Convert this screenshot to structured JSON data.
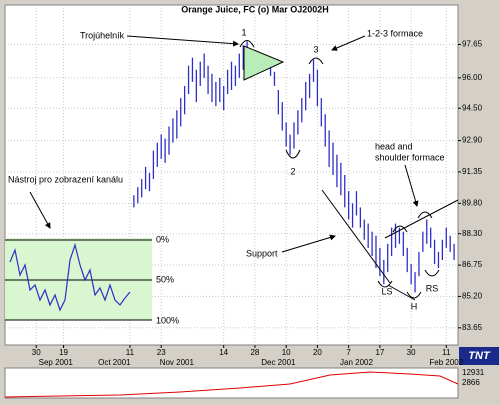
{
  "chart_data": {
    "type": "hlc",
    "title": "Orange Juice, FC (o) Mar OJ2002H",
    "color": "#2f2fc8",
    "grid": true,
    "xlim": [
      0,
      116
    ],
    "ylim": [
      82.8,
      99.6
    ],
    "yticks": [
      {
        "value": 97.65,
        "label": "97.65"
      },
      {
        "value": 96.0,
        "label": "96.00"
      },
      {
        "value": 94.5,
        "label": "94.50"
      },
      {
        "value": 92.9,
        "label": "92.90"
      },
      {
        "value": 91.35,
        "label": "91.35"
      },
      {
        "value": 89.8,
        "label": "89.80"
      },
      {
        "value": 88.3,
        "label": "88.30"
      },
      {
        "value": 86.75,
        "label": "86.75"
      },
      {
        "value": 85.2,
        "label": "85.20"
      },
      {
        "value": 83.65,
        "label": "83.65"
      }
    ],
    "xticks": [
      {
        "value": 8,
        "label": "30"
      },
      {
        "value": 15,
        "label": "19"
      },
      {
        "value": 32,
        "label": "11"
      },
      {
        "value": 40,
        "label": "23"
      },
      {
        "value": 56,
        "label": "14"
      },
      {
        "value": 64,
        "label": "28"
      },
      {
        "value": 72,
        "label": "10"
      },
      {
        "value": 80,
        "label": "20"
      },
      {
        "value": 88,
        "label": "7"
      },
      {
        "value": 96,
        "label": "17"
      },
      {
        "value": 104,
        "label": "30"
      },
      {
        "value": 113,
        "label": "11"
      }
    ],
    "months": [
      {
        "value": 13,
        "label": "Sep 2001"
      },
      {
        "value": 28,
        "label": "Oct 2001"
      },
      {
        "value": 44,
        "label": "Nov 2001"
      },
      {
        "value": 70,
        "label": "Dec 2001"
      },
      {
        "value": 90,
        "label": "Jan 2002"
      },
      {
        "value": 113,
        "label": "Feb 2002"
      }
    ],
    "x": [
      33,
      34,
      35,
      36,
      37,
      38,
      39,
      40,
      41,
      42,
      43,
      44,
      45,
      46,
      47,
      48,
      49,
      50,
      51,
      52,
      53,
      54,
      55,
      56,
      57,
      58,
      59,
      60,
      61,
      62,
      63,
      64,
      65,
      66,
      67,
      68,
      69,
      70,
      71,
      72,
      73,
      74,
      75,
      76,
      77,
      78,
      79,
      80,
      81,
      82,
      83,
      84,
      85,
      86,
      87,
      88,
      89,
      90,
      91,
      92,
      93,
      94,
      95,
      96,
      97,
      98,
      99,
      100,
      101,
      102,
      103,
      104,
      105,
      106,
      107,
      108,
      109,
      110,
      111,
      112,
      113,
      114,
      115
    ],
    "high": [
      90.2,
      90.6,
      91.0,
      91.6,
      91.3,
      92.4,
      92.8,
      93.2,
      93.0,
      93.6,
      94.0,
      94.4,
      95.0,
      95.6,
      96.6,
      97.0,
      96.4,
      96.8,
      97.2,
      96.6,
      96.2,
      95.8,
      96.0,
      95.6,
      96.4,
      96.8,
      96.6,
      97.2,
      97.6,
      97.8,
      97.4,
      97.2,
      96.9,
      96.7,
      96.6,
      96.5,
      96.3,
      95.4,
      94.8,
      93.8,
      93.2,
      93.8,
      94.4,
      95.0,
      95.8,
      96.2,
      96.9,
      96.4,
      95.0,
      94.2,
      93.4,
      92.8,
      92.2,
      91.8,
      91.2,
      90.4,
      89.8,
      90.4,
      89.6,
      89.0,
      88.8,
      88.4,
      88.2,
      87.6,
      87.0,
      87.8,
      88.6,
      88.8,
      88.6,
      88.4,
      87.6,
      86.8,
      86.4,
      87.4,
      88.4,
      89.0,
      88.6,
      88.0,
      87.4,
      88.0,
      88.6,
      88.2,
      87.8
    ],
    "low": [
      89.6,
      89.8,
      90.1,
      90.5,
      90.4,
      91.0,
      91.6,
      92.0,
      91.8,
      92.2,
      92.8,
      93.0,
      93.6,
      94.2,
      95.2,
      95.8,
      94.8,
      95.6,
      96.0,
      95.2,
      94.8,
      94.6,
      94.8,
      94.4,
      95.2,
      95.4,
      95.6,
      96.0,
      96.4,
      96.6,
      96.2,
      96.2,
      96.3,
      96.3,
      96.4,
      96.1,
      95.6,
      94.2,
      93.4,
      92.6,
      92.2,
      92.5,
      93.2,
      93.8,
      94.4,
      95.0,
      95.8,
      94.6,
      93.6,
      92.6,
      91.6,
      91.2,
      90.6,
      90.2,
      89.6,
      89.0,
      88.6,
      89.2,
      88.6,
      88.0,
      87.6,
      87.2,
      86.6,
      86.2,
      85.8,
      86.4,
      87.2,
      87.6,
      87.8,
      87.2,
      86.4,
      85.8,
      85.4,
      86.2,
      87.4,
      87.8,
      87.6,
      86.8,
      86.6,
      87.0,
      87.6,
      87.4,
      87.0
    ]
  },
  "annotations": {
    "triangle": "Trojúhelník",
    "one": "1",
    "two": "2",
    "three": "3",
    "formation": "1-2-3 formace",
    "channel": "Nástroj pro zobrazení kanálu",
    "pct0": "0%",
    "pct50": "50%",
    "pct100": "100%",
    "support": "Support",
    "hs1": "head and",
    "hs2": "shoulder formace",
    "ls": "LS",
    "h": "H",
    "rs": "RS"
  },
  "volume_labels": [
    "12931",
    "2866"
  ],
  "logo": "TNT"
}
